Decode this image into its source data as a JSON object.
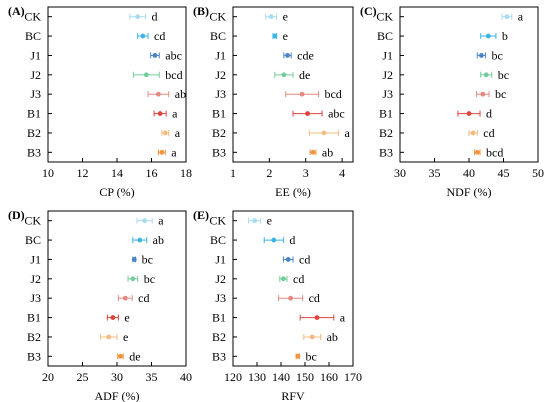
{
  "chart_data": [
    {
      "type": "scatter",
      "panel_label": "(A)",
      "xlabel": "CP (%)",
      "xlim": [
        10,
        18
      ],
      "xticks": [
        10,
        12,
        14,
        16,
        18
      ],
      "grid": false,
      "categories": [
        "CK",
        "BC",
        "J1",
        "J2",
        "J3",
        "B1",
        "B2",
        "B3"
      ],
      "values": [
        15.2,
        15.5,
        16.2,
        15.7,
        16.4,
        16.5,
        16.8,
        16.6
      ],
      "errors": [
        0.45,
        0.3,
        0.25,
        0.75,
        0.6,
        0.35,
        0.2,
        0.2
      ],
      "letters": [
        "d",
        "cd",
        "abc",
        "bcd",
        "ab",
        "a",
        "a",
        "a"
      ]
    },
    {
      "type": "scatter",
      "panel_label": "(B)",
      "xlabel": "EE (%)",
      "xlim": [
        1,
        4.3
      ],
      "xticks": [
        1,
        2,
        3,
        4
      ],
      "grid": false,
      "categories": [
        "CK",
        "BC",
        "J1",
        "J2",
        "J3",
        "B1",
        "B2",
        "B3"
      ],
      "values": [
        2.05,
        2.15,
        2.5,
        2.4,
        2.9,
        3.05,
        3.5,
        3.2
      ],
      "errors": [
        0.15,
        0.05,
        0.1,
        0.25,
        0.45,
        0.4,
        0.4,
        0.08
      ],
      "letters": [
        "e",
        "e",
        "cde",
        "de",
        "bcd",
        "abc",
        "a",
        "ab"
      ]
    },
    {
      "type": "scatter",
      "panel_label": "(C)",
      "xlabel": "NDF (%)",
      "xlim": [
        30,
        50
      ],
      "xticks": [
        30,
        35,
        40,
        45,
        50
      ],
      "grid": false,
      "categories": [
        "CK",
        "BC",
        "J1",
        "J2",
        "J3",
        "B1",
        "B2",
        "B3"
      ],
      "values": [
        45.5,
        42.8,
        41.8,
        42.5,
        42,
        40,
        40.6,
        41.2
      ],
      "errors": [
        0.7,
        1.1,
        0.6,
        0.8,
        0.9,
        1.6,
        0.6,
        0.4
      ],
      "letters": [
        "a",
        "b",
        "bc",
        "bc",
        "bc",
        "d",
        "cd",
        "bcd"
      ]
    },
    {
      "type": "scatter",
      "panel_label": "(D)",
      "xlabel": "ADF (%)",
      "xlim": [
        20,
        40
      ],
      "xticks": [
        20,
        25,
        30,
        35,
        40
      ],
      "grid": false,
      "categories": [
        "CK",
        "BC",
        "J1",
        "J2",
        "J3",
        "B1",
        "B2",
        "B3"
      ],
      "values": [
        34,
        33.3,
        32.5,
        32.3,
        31.2,
        29.4,
        28.8,
        30.5
      ],
      "errors": [
        1.1,
        1.0,
        0.2,
        0.7,
        1.0,
        0.8,
        1.2,
        0.4
      ],
      "letters": [
        "a",
        "ab",
        "bc",
        "bc",
        "cd",
        "e",
        "e",
        "de"
      ]
    },
    {
      "type": "scatter",
      "panel_label": "(E)",
      "xlabel": "RFV",
      "xlim": [
        120,
        170
      ],
      "xticks": [
        120,
        130,
        140,
        150,
        160,
        170
      ],
      "grid": false,
      "categories": [
        "CK",
        "BC",
        "J1",
        "J2",
        "J3",
        "B1",
        "B2",
        "B3"
      ],
      "values": [
        129,
        137,
        143,
        141,
        144,
        155,
        153,
        147
      ],
      "errors": [
        2.5,
        4,
        2,
        1.5,
        5,
        7,
        3.5,
        0.7
      ],
      "letters": [
        "e",
        "d",
        "cd",
        "cd",
        "cd",
        "a",
        "ab",
        "bc"
      ]
    }
  ],
  "colors": {
    "CK": "#a8dcee",
    "BC": "#3ab4e4",
    "J1": "#4b84c4",
    "J2": "#74cc9c",
    "J3": "#e48880",
    "B1": "#e0443c",
    "B2": "#f4bc80",
    "B3": "#f09440"
  }
}
